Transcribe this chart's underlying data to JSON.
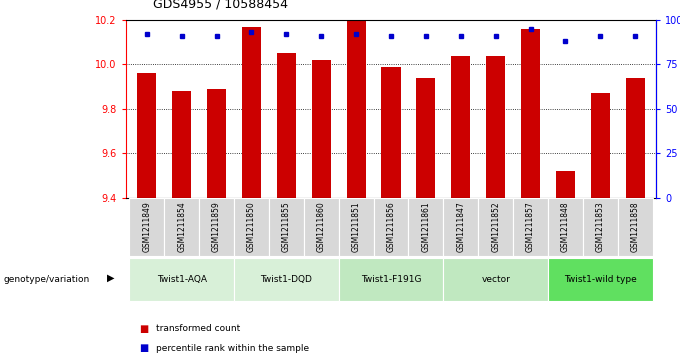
{
  "title": "GDS4955 / 10588454",
  "samples": [
    "GSM1211849",
    "GSM1211854",
    "GSM1211859",
    "GSM1211850",
    "GSM1211855",
    "GSM1211860",
    "GSM1211851",
    "GSM1211856",
    "GSM1211861",
    "GSM1211847",
    "GSM1211852",
    "GSM1211857",
    "GSM1211848",
    "GSM1211853",
    "GSM1211858"
  ],
  "transformed_counts": [
    9.96,
    9.88,
    9.89,
    10.17,
    10.05,
    10.02,
    10.2,
    9.99,
    9.94,
    10.04,
    10.04,
    10.16,
    9.52,
    9.87,
    9.94
  ],
  "percentile_ranks": [
    92,
    91,
    91,
    93,
    92,
    91,
    92,
    91,
    91,
    91,
    91,
    95,
    88,
    91,
    91
  ],
  "groups": [
    {
      "label": "Twist1-AQA",
      "start": 0,
      "end": 3,
      "color": "#d8f0d8"
    },
    {
      "label": "Twist1-DQD",
      "start": 3,
      "end": 6,
      "color": "#d8f0d8"
    },
    {
      "label": "Twist1-F191G",
      "start": 6,
      "end": 9,
      "color": "#c0e8c0"
    },
    {
      "label": "vector",
      "start": 9,
      "end": 12,
      "color": "#c0e8c0"
    },
    {
      "label": "Twist1-wild type",
      "start": 12,
      "end": 15,
      "color": "#60e060"
    }
  ],
  "ylim_left": [
    9.4,
    10.2
  ],
  "ylim_right": [
    0,
    100
  ],
  "yticks_left": [
    9.4,
    9.6,
    9.8,
    10.0,
    10.2
  ],
  "yticks_right": [
    0,
    25,
    50,
    75,
    100
  ],
  "ytick_labels_right": [
    "0",
    "25",
    "50",
    "75",
    "100%"
  ],
  "bar_color": "#cc0000",
  "dot_color": "#0000cc",
  "bar_width": 0.55,
  "background_color": "#ffffff",
  "legend_items": [
    {
      "label": "transformed count",
      "color": "#cc0000"
    },
    {
      "label": "percentile rank within the sample",
      "color": "#0000cc"
    }
  ],
  "genotype_label": "genotype/variation"
}
